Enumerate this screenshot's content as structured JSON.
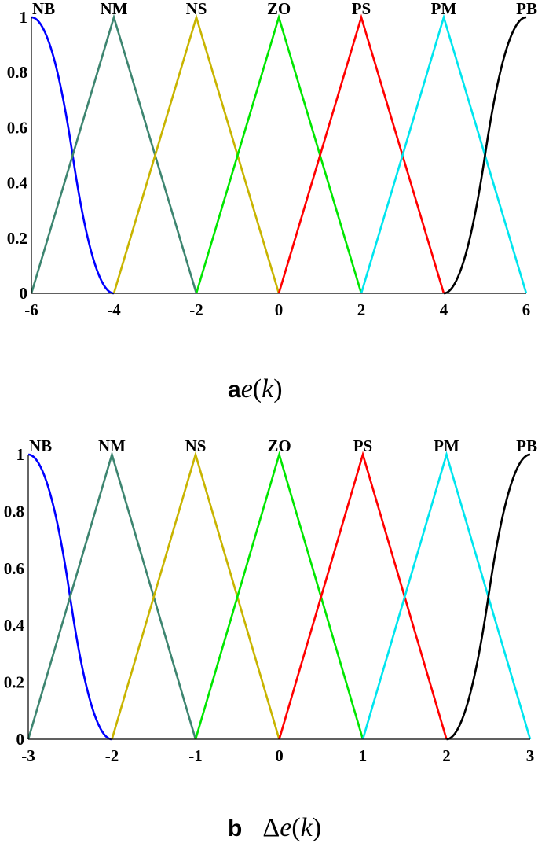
{
  "chart_data": [
    {
      "type": "line",
      "caption": {
        "letter": "a",
        "prefix": "",
        "variable": "e",
        "argument": "k"
      },
      "xlim": [
        -6,
        6
      ],
      "ylim": [
        0,
        1
      ],
      "x_ticks": [
        "-6",
        "-4",
        "-2",
        "0",
        "2",
        "4",
        "6"
      ],
      "y_ticks": [
        "0",
        "0.2",
        "0.4",
        "0.6",
        "0.8",
        "1"
      ],
      "grid": false,
      "series": [
        {
          "name": "NB",
          "color": "#0000ff",
          "shape": "zmf",
          "params": [
            -6,
            -4
          ]
        },
        {
          "name": "NM",
          "color": "#3d8570",
          "shape": "trimf",
          "params": [
            -6,
            -4,
            -2
          ]
        },
        {
          "name": "NS",
          "color": "#c8b400",
          "shape": "trimf",
          "params": [
            -4,
            -2,
            0
          ]
        },
        {
          "name": "ZO",
          "color": "#00e600",
          "shape": "trimf",
          "params": [
            -2,
            0,
            2
          ]
        },
        {
          "name": "PS",
          "color": "#ff0000",
          "shape": "trimf",
          "params": [
            0,
            2,
            4
          ]
        },
        {
          "name": "PM",
          "color": "#00e5ee",
          "shape": "trimf",
          "params": [
            2,
            4,
            6
          ]
        },
        {
          "name": "PB",
          "color": "#000000",
          "shape": "smf",
          "params": [
            4,
            6
          ]
        }
      ]
    },
    {
      "type": "line",
      "caption": {
        "letter": "b",
        "prefix": "Δ",
        "variable": "e",
        "argument": "k"
      },
      "xlim": [
        -3,
        3
      ],
      "ylim": [
        0,
        1
      ],
      "x_ticks": [
        "-3",
        "-2",
        "-1",
        "0",
        "1",
        "2",
        "3"
      ],
      "y_ticks": [
        "0",
        "0.2",
        "0.4",
        "0.6",
        "0.8",
        "1"
      ],
      "grid": false,
      "series": [
        {
          "name": "NB",
          "color": "#0000ff",
          "shape": "zmf",
          "params": [
            -3,
            -2
          ]
        },
        {
          "name": "NM",
          "color": "#3d8570",
          "shape": "trimf",
          "params": [
            -3,
            -2,
            -1
          ]
        },
        {
          "name": "NS",
          "color": "#c8b400",
          "shape": "trimf",
          "params": [
            -2,
            -1,
            0
          ]
        },
        {
          "name": "ZO",
          "color": "#00e600",
          "shape": "trimf",
          "params": [
            -1,
            0,
            1
          ]
        },
        {
          "name": "PS",
          "color": "#ff0000",
          "shape": "trimf",
          "params": [
            0,
            1,
            2
          ]
        },
        {
          "name": "PM",
          "color": "#00e5ee",
          "shape": "trimf",
          "params": [
            1,
            2,
            3
          ]
        },
        {
          "name": "PB",
          "color": "#000000",
          "shape": "smf",
          "params": [
            2,
            3
          ]
        }
      ]
    }
  ]
}
